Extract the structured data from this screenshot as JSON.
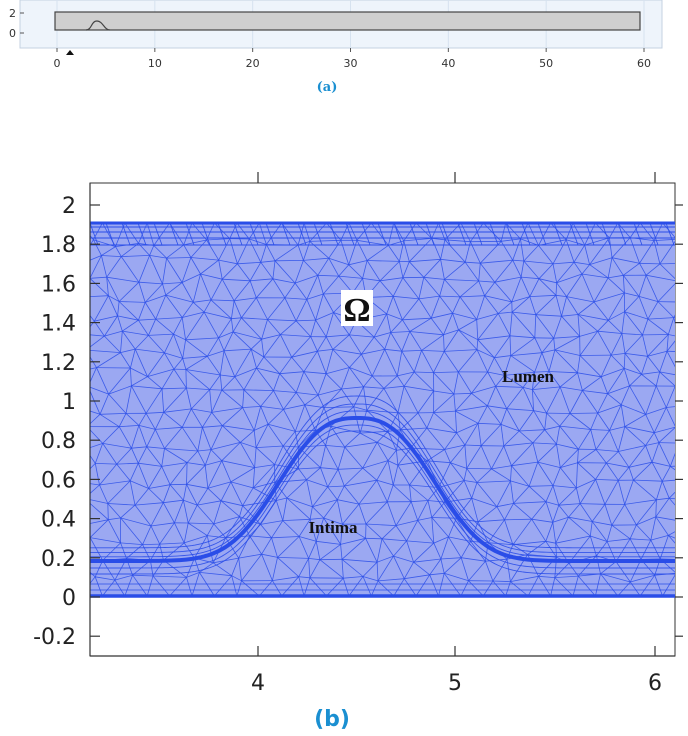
{
  "caption_color": "#1a8fd1",
  "mesh_color": "#2a4de8",
  "fill_color": "#9ba8f2",
  "panel_a": {
    "caption": "(a)",
    "x_ticks": [
      "0",
      "10",
      "20",
      "30",
      "40",
      "50",
      "60"
    ],
    "y_ticks": [
      "2",
      "0"
    ]
  },
  "panel_b": {
    "caption": "(b)",
    "x_ticks": [
      "4",
      "5",
      "6"
    ],
    "y_ticks": [
      "2",
      "1.8",
      "1.6",
      "1.4",
      "1.2",
      "1",
      "0.8",
      "0.6",
      "0.4",
      "0.2",
      "0",
      "-0.2"
    ],
    "omega_label": "Ω",
    "lumen_label": "Lumen",
    "intima_label": "Intima"
  }
}
